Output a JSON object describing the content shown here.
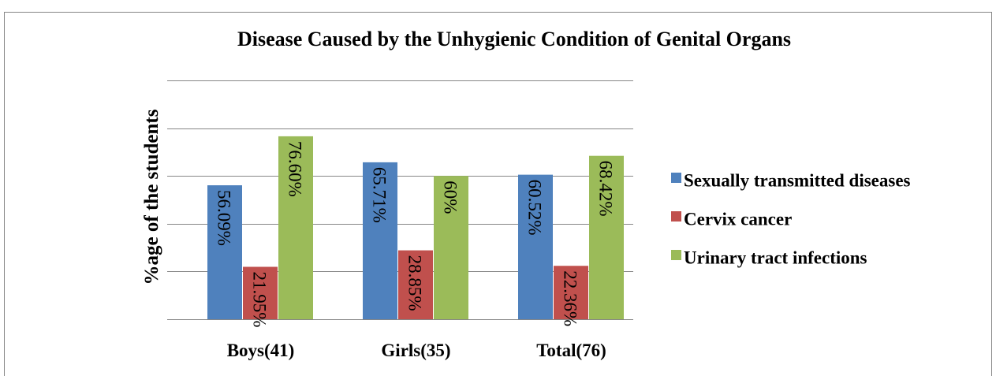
{
  "chart_data": {
    "type": "bar",
    "title": "Disease  Caused by the Unhygienic Condition of Genital Organs",
    "y_label": "%age of the students",
    "categories": [
      "Boys(41)",
      "Girls(35)",
      "Total(76)"
    ],
    "series": [
      {
        "name": "Sexually transmitted diseases",
        "color": "#4f81bd",
        "values": [
          56.09,
          65.71,
          60.52
        ],
        "value_labels": [
          "56.09%",
          "65.71%",
          "60.52%"
        ]
      },
      {
        "name": "Cervix cancer",
        "color": "#c0504d",
        "values": [
          21.95,
          28.85,
          22.36
        ],
        "value_labels": [
          "21.95%",
          "28.85%",
          "22.36%"
        ]
      },
      {
        "name": "Urinary tract infections",
        "color": "#9bbb59",
        "values": [
          76.6,
          60,
          68.42
        ],
        "value_labels": [
          "76.60%",
          "60%",
          "68.42%"
        ]
      }
    ],
    "ylim": [
      0,
      100
    ],
    "yticks": [
      0,
      20,
      40,
      60,
      80,
      100
    ],
    "grid": true,
    "legend": "right"
  }
}
